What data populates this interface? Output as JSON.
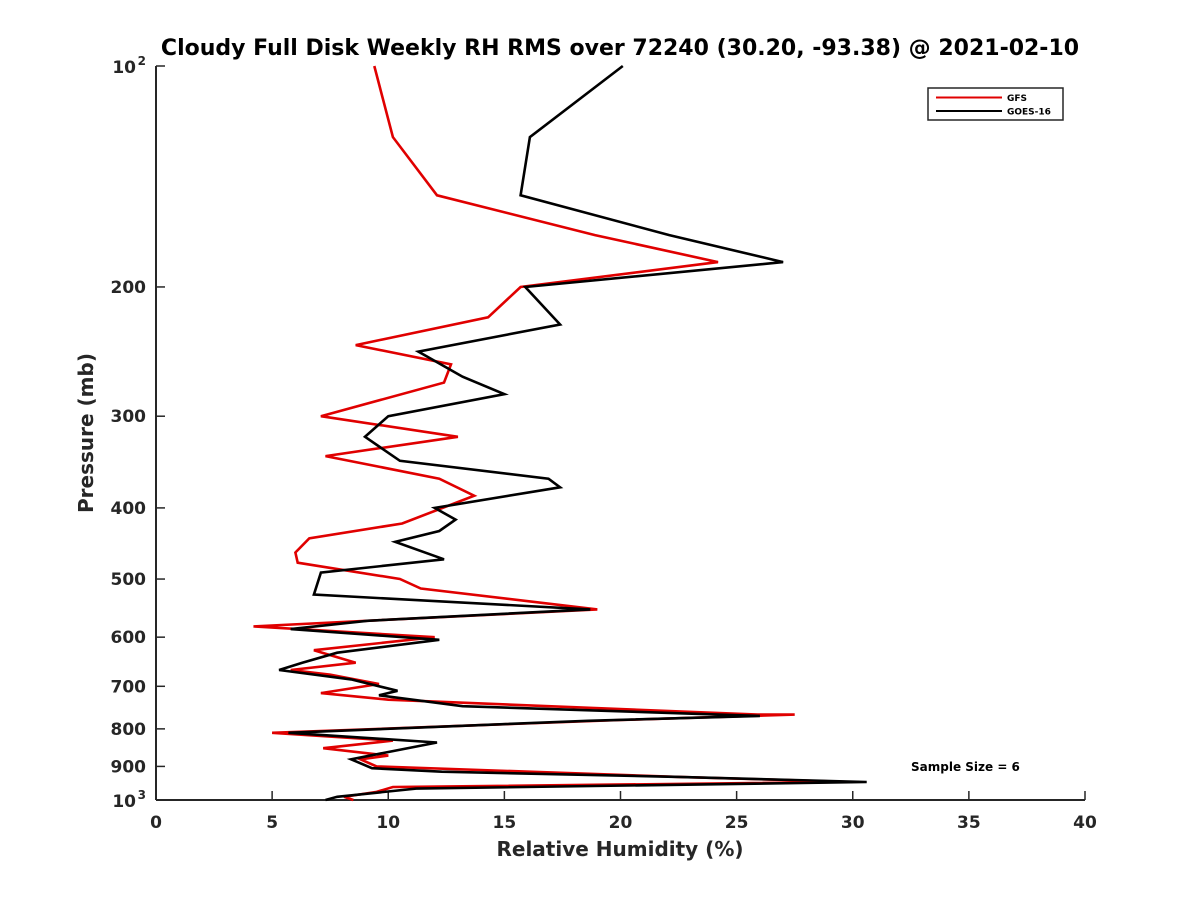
{
  "chart_data": {
    "type": "line",
    "title": "Cloudy Full Disk Weekly RH RMS over 72240 (30.20, -93.38) @ 2021-02-10",
    "xlabel": "Relative Humidity (%)",
    "ylabel": "Pressure (mb)",
    "xlim": [
      0,
      40
    ],
    "ylim": [
      100,
      1000
    ],
    "yscale": "log",
    "y_reversed": true,
    "grid": false,
    "x_ticks": [
      0,
      5,
      10,
      15,
      20,
      25,
      30,
      35,
      40
    ],
    "x_tick_labels": [
      "0",
      "5",
      "10",
      "15",
      "20",
      "25",
      "30",
      "35",
      "40"
    ],
    "y_ticks": [
      100,
      200,
      300,
      400,
      500,
      600,
      700,
      800,
      900,
      1000
    ],
    "y_tick_labels": [
      "",
      "200",
      "300",
      "400",
      "500",
      "600",
      "700",
      "800",
      "900",
      ""
    ],
    "y_tick_exp_labels": [
      {
        "value": 100,
        "base": "10",
        "exp": "2"
      },
      {
        "value": 1000,
        "base": "10",
        "exp": "3"
      }
    ],
    "legend_position": "top-right",
    "series": [
      {
        "name": "GFS",
        "color": "#e00000",
        "points": [
          [
            9.4,
            100
          ],
          [
            10.2,
            125
          ],
          [
            12.1,
            150
          ],
          [
            18.9,
            170
          ],
          [
            24.2,
            185
          ],
          [
            15.7,
            200
          ],
          [
            14.3,
            220
          ],
          [
            8.6,
            240
          ],
          [
            12.7,
            255
          ],
          [
            12.4,
            270
          ],
          [
            7.1,
            300
          ],
          [
            13.0,
            320
          ],
          [
            7.3,
            340
          ],
          [
            12.2,
            365
          ],
          [
            13.7,
            385
          ],
          [
            10.6,
            420
          ],
          [
            6.6,
            440
          ],
          [
            6.0,
            460
          ],
          [
            6.1,
            475
          ],
          [
            10.5,
            500
          ],
          [
            11.4,
            515
          ],
          [
            19.0,
            550
          ],
          [
            4.2,
            580
          ],
          [
            12.0,
            600
          ],
          [
            6.8,
            625
          ],
          [
            8.6,
            650
          ],
          [
            5.8,
            665
          ],
          [
            7.5,
            675
          ],
          [
            9.6,
            695
          ],
          [
            7.1,
            715
          ],
          [
            10.0,
            730
          ],
          [
            25.9,
            765
          ],
          [
            27.5,
            765
          ],
          [
            20.0,
            778
          ],
          [
            5.0,
            810
          ],
          [
            10.2,
            830
          ],
          [
            7.2,
            850
          ],
          [
            10.0,
            870
          ],
          [
            8.8,
            880
          ],
          [
            9.5,
            900
          ],
          [
            22.5,
            930
          ],
          [
            30.0,
            945
          ],
          [
            10.2,
            960
          ],
          [
            9.5,
            975
          ],
          [
            8.1,
            990
          ],
          [
            8.5,
            1000
          ]
        ]
      },
      {
        "name": "GOES-16",
        "color": "#000000",
        "points": [
          [
            20.1,
            100
          ],
          [
            16.1,
            125
          ],
          [
            15.7,
            150
          ],
          [
            22.1,
            170
          ],
          [
            27.0,
            185
          ],
          [
            15.9,
            200
          ],
          [
            17.4,
            225
          ],
          [
            11.3,
            245
          ],
          [
            13.2,
            265
          ],
          [
            15.0,
            280
          ],
          [
            10.0,
            300
          ],
          [
            9.0,
            320
          ],
          [
            10.5,
            345
          ],
          [
            16.9,
            365
          ],
          [
            17.4,
            375
          ],
          [
            12.0,
            400
          ],
          [
            12.9,
            415
          ],
          [
            12.2,
            430
          ],
          [
            10.3,
            445
          ],
          [
            12.4,
            470
          ],
          [
            7.1,
            490
          ],
          [
            6.8,
            525
          ],
          [
            18.7,
            550
          ],
          [
            9.1,
            570
          ],
          [
            5.8,
            585
          ],
          [
            12.2,
            605
          ],
          [
            7.8,
            630
          ],
          [
            6.3,
            650
          ],
          [
            5.3,
            665
          ],
          [
            8.4,
            685
          ],
          [
            10.4,
            710
          ],
          [
            9.6,
            720
          ],
          [
            13.2,
            745
          ],
          [
            26.0,
            768
          ],
          [
            18.6,
            780
          ],
          [
            12.0,
            795
          ],
          [
            5.7,
            810
          ],
          [
            12.1,
            835
          ],
          [
            8.4,
            880
          ],
          [
            9.3,
            905
          ],
          [
            12.3,
            915
          ],
          [
            22.5,
            930
          ],
          [
            30.6,
            945
          ],
          [
            11.2,
            965
          ],
          [
            7.8,
            990
          ],
          [
            7.3,
            1000
          ]
        ]
      }
    ],
    "annotations": [
      "Sample Size = 6"
    ]
  }
}
